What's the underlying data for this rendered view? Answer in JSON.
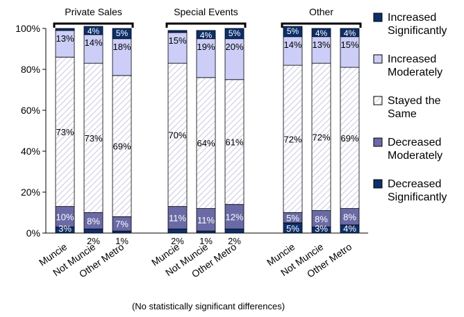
{
  "chart_data": {
    "type": "bar",
    "stacked": true,
    "percent": true,
    "title": "",
    "footnote": "(No statistically significant differences)",
    "ylim": [
      0,
      100
    ],
    "yticks": [
      "0%",
      "20%",
      "40%",
      "60%",
      "80%",
      "100%"
    ],
    "grid": false,
    "legend_position": "right",
    "groups": [
      {
        "label": "Private Sales",
        "categories": [
          "Muncie",
          "Not Muncie",
          "Other Metro"
        ]
      },
      {
        "label": "Special Events",
        "categories": [
          "Muncie",
          "Not Muncie",
          "Other Metro"
        ]
      },
      {
        "label": "Other",
        "categories": [
          "Muncie",
          "Not Muncie",
          "Other Metro"
        ]
      }
    ],
    "series": [
      {
        "name": "Decreased Significantly",
        "color": "#0d2f6b",
        "pattern": "solid",
        "values": [
          3,
          2,
          1,
          2,
          1,
          2,
          5,
          3,
          4
        ],
        "labels": [
          "3%",
          "2%",
          "1%",
          "2%",
          "1%",
          "2%",
          "5%",
          "3%",
          "4%"
        ]
      },
      {
        "name": "Decreased Moderately",
        "color": "#6a6aa6",
        "pattern": "solid",
        "values": [
          10,
          8,
          7,
          11,
          11,
          12,
          5,
          8,
          8
        ],
        "labels": [
          "10%",
          "8%",
          "7%",
          "11%",
          "11%",
          "12%",
          "5%",
          "8%",
          "8%"
        ]
      },
      {
        "name": "Stayed the Same",
        "color": "#ffffff",
        "pattern": "hatch",
        "values": [
          73,
          73,
          69,
          70,
          64,
          61,
          72,
          72,
          69
        ],
        "labels": [
          "73%",
          "73%",
          "69%",
          "70%",
          "64%",
          "61%",
          "72%",
          "72%",
          "69%"
        ]
      },
      {
        "name": "Increased Moderately",
        "color": "#cccef8",
        "pattern": "solid",
        "values": [
          13,
          14,
          18,
          15,
          19,
          20,
          14,
          13,
          15
        ],
        "labels": [
          "13%",
          "14%",
          "18%",
          "15%",
          "19%",
          "20%",
          "14%",
          "13%",
          "15%"
        ]
      },
      {
        "name": "Increased Significantly",
        "color": "#0d2f6b",
        "pattern": "solid",
        "values": [
          1,
          4,
          5,
          1,
          4,
          5,
          5,
          4,
          4
        ],
        "labels": [
          "",
          "4%",
          "5%",
          "",
          "4%",
          "5%",
          "5%",
          "4%",
          "4%"
        ]
      }
    ],
    "legend": [
      {
        "lines": [
          "Increased",
          "Significantly"
        ],
        "color": "#0d2f6b",
        "pattern": "solid"
      },
      {
        "lines": [
          "Increased",
          "Moderately"
        ],
        "color": "#cccef8",
        "pattern": "solid"
      },
      {
        "lines": [
          "Stayed the",
          "Same"
        ],
        "color": "#ffffff",
        "pattern": "hatch"
      },
      {
        "lines": [
          "Decreased",
          "Moderately"
        ],
        "color": "#6a6aa6",
        "pattern": "solid"
      },
      {
        "lines": [
          "Decreased",
          "Significantly"
        ],
        "color": "#0d2f6b",
        "pattern": "solid"
      }
    ],
    "colors": {
      "axis": "#000000",
      "label_on_dark": "#ffffff",
      "label_on_light": "#000000",
      "hatch": "#c8c8e0"
    }
  }
}
